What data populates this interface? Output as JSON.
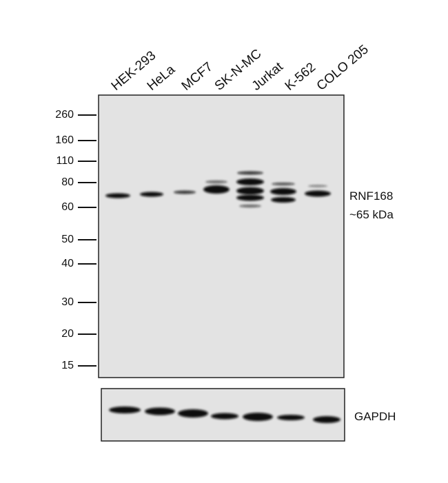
{
  "lanes": [
    "HEK-293",
    "HeLa",
    "MCF7",
    "SK-N-MC",
    "Jurkat",
    "K-562",
    "COLO 205"
  ],
  "markers": [
    260,
    160,
    110,
    80,
    60,
    50,
    40,
    30,
    20,
    15
  ],
  "target": {
    "name": "RNF168",
    "size": "~65 kDa"
  },
  "loading_control": "GAPDH"
}
